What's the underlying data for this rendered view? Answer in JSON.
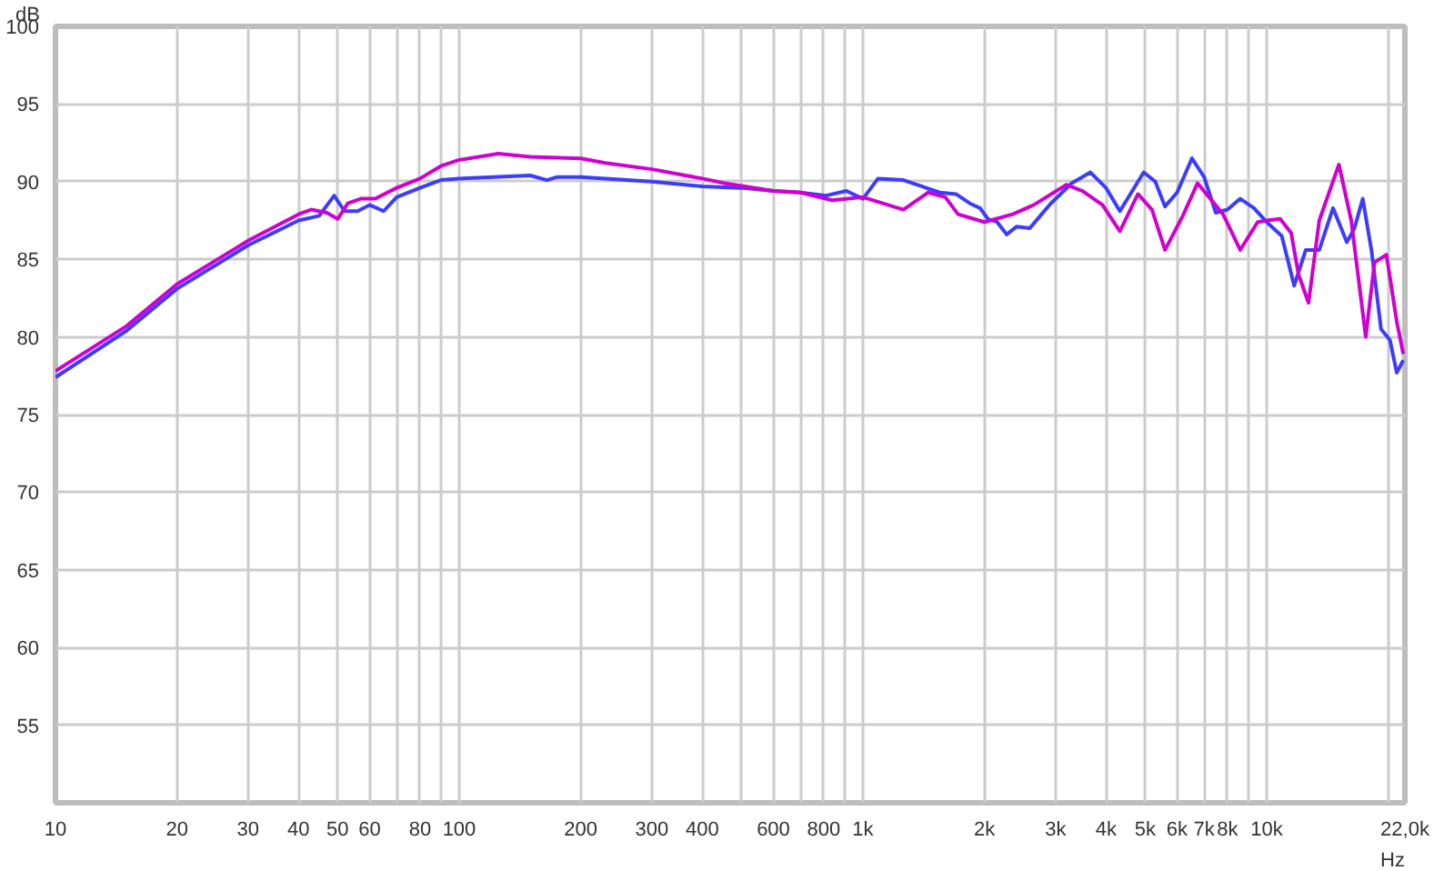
{
  "chart_data": {
    "type": "line",
    "xlabel": "Hz",
    "ylabel": "dB",
    "log": "x",
    "grid": true,
    "line_style": "solid",
    "marker": "none",
    "xlim": [
      10,
      22000
    ],
    "ylim": [
      50,
      100
    ],
    "xticks": [
      10,
      20,
      30,
      40,
      50,
      60,
      {
        "value": 70,
        "label": null
      },
      80,
      {
        "value": 90,
        "label": null
      },
      100,
      200,
      300,
      400,
      {
        "value": 500,
        "label": null
      },
      600,
      {
        "value": 700,
        "label": null
      },
      800,
      {
        "value": 900,
        "label": null
      },
      {
        "value": 1000,
        "label": "1k"
      },
      {
        "value": 2000,
        "label": "2k"
      },
      {
        "value": 3000,
        "label": "3k"
      },
      {
        "value": 4000,
        "label": "4k"
      },
      {
        "value": 5000,
        "label": "5k"
      },
      {
        "value": 6000,
        "label": "6k"
      },
      {
        "value": 7000,
        "label": "7k"
      },
      {
        "value": 8000,
        "label": "8k"
      },
      {
        "value": 9000,
        "label": null
      },
      {
        "value": 10000,
        "label": "10k"
      },
      {
        "value": 20000,
        "label": null
      },
      {
        "value": 22000,
        "label": "22,0k"
      }
    ],
    "yticks": [
      55,
      60,
      65,
      70,
      75,
      80,
      85,
      90,
      95,
      100
    ],
    "series": [
      {
        "color": "#3c3cff",
        "x": [
          10,
          15,
          20,
          30,
          40,
          45,
          49,
          52,
          56,
          60,
          65,
          70,
          80,
          90,
          100,
          150,
          165,
          175,
          200,
          300,
          400,
          500,
          600,
          700,
          810,
          910,
          1000,
          1090,
          1260,
          1550,
          1700,
          1840,
          1950,
          2040,
          2150,
          2270,
          2400,
          2590,
          2750,
          2920,
          3290,
          3660,
          4000,
          4330,
          4960,
          5300,
          5600,
          6000,
          6530,
          7000,
          7480,
          8000,
          8600,
          9300,
          10000,
          10900,
          11700,
          12500,
          13500,
          14600,
          15800,
          16500,
          17300,
          18200,
          19200,
          20200,
          21000,
          21800
        ],
        "values": [
          77.4,
          80.4,
          83.1,
          85.9,
          87.5,
          87.8,
          89.1,
          88.1,
          88.1,
          88.5,
          88.1,
          89.0,
          89.6,
          90.1,
          90.2,
          90.4,
          90.1,
          90.3,
          90.3,
          90.0,
          89.7,
          89.6,
          89.4,
          89.3,
          89.1,
          89.4,
          88.9,
          90.2,
          90.1,
          89.3,
          89.2,
          88.6,
          88.3,
          87.6,
          87.4,
          86.6,
          87.1,
          87.0,
          87.8,
          88.6,
          89.9,
          90.6,
          89.6,
          88.1,
          90.6,
          90.0,
          88.4,
          89.3,
          91.5,
          90.3,
          88.0,
          88.2,
          88.9,
          88.3,
          87.4,
          86.5,
          83.3,
          85.6,
          85.6,
          88.3,
          86.1,
          87.0,
          88.9,
          85.5,
          80.5,
          79.8,
          77.7,
          78.5
        ]
      },
      {
        "color": "#d000d0",
        "x": [
          10,
          15,
          20,
          30,
          40,
          43,
          47,
          50,
          53,
          57,
          62,
          70,
          80,
          90,
          100,
          125,
          150,
          200,
          230,
          300,
          400,
          454,
          600,
          700,
          840,
          1000,
          1260,
          1450,
          1600,
          1720,
          2000,
          2350,
          2650,
          3190,
          3500,
          3920,
          4330,
          4800,
          5200,
          5600,
          6200,
          6740,
          7200,
          7800,
          8600,
          9500,
          10000,
          10800,
          11500,
          12000,
          12700,
          13500,
          15100,
          16200,
          17600,
          18500,
          19800,
          21000,
          21800
        ],
        "values": [
          77.8,
          80.7,
          83.4,
          86.2,
          87.9,
          88.2,
          88.0,
          87.6,
          88.6,
          88.9,
          88.9,
          89.6,
          90.2,
          91.0,
          91.4,
          91.8,
          91.6,
          91.5,
          91.2,
          90.8,
          90.2,
          89.9,
          89.4,
          89.3,
          88.8,
          89.0,
          88.2,
          89.3,
          89.0,
          87.9,
          87.4,
          87.9,
          88.5,
          89.8,
          89.4,
          88.5,
          86.8,
          89.2,
          88.2,
          85.6,
          87.8,
          89.9,
          89.0,
          87.9,
          85.6,
          87.4,
          87.5,
          87.6,
          86.7,
          84.0,
          82.2,
          87.5,
          91.1,
          87.5,
          80.0,
          84.8,
          85.3,
          81.0,
          78.9
        ]
      }
    ]
  }
}
